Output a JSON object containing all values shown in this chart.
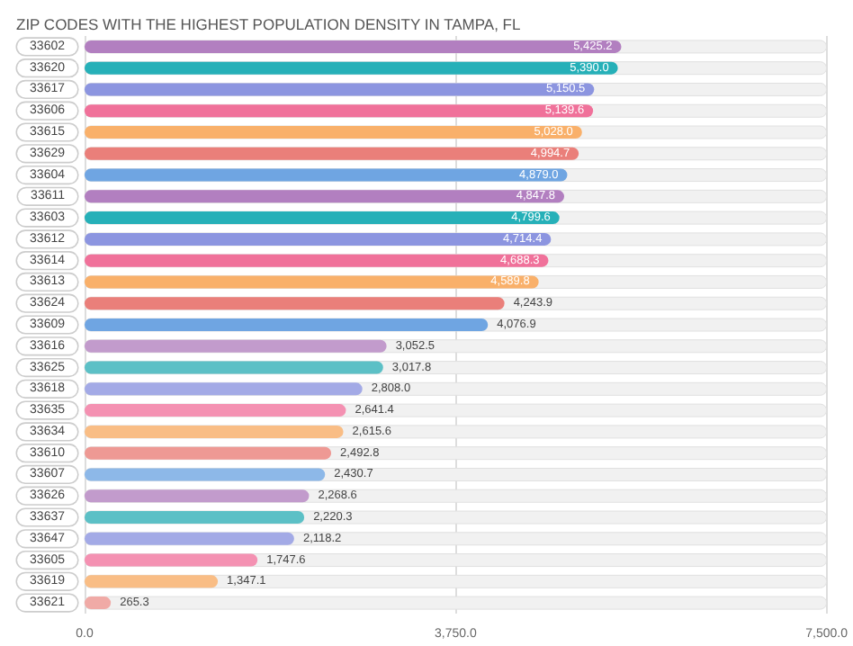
{
  "chart_data": {
    "type": "bar",
    "orientation": "horizontal",
    "title": "ZIP CODES WITH THE HIGHEST POPULATION DENSITY IN TAMPA, FL",
    "categories": [
      "33602",
      "33620",
      "33617",
      "33606",
      "33615",
      "33629",
      "33604",
      "33611",
      "33603",
      "33612",
      "33614",
      "33613",
      "33624",
      "33609",
      "33616",
      "33625",
      "33618",
      "33635",
      "33634",
      "33610",
      "33607",
      "33626",
      "33637",
      "33647",
      "33605",
      "33619",
      "33621"
    ],
    "values": [
      5425.2,
      5390.0,
      5150.5,
      5139.6,
      5028.0,
      4994.7,
      4879.0,
      4847.8,
      4799.6,
      4714.4,
      4688.3,
      4589.8,
      4243.9,
      4076.9,
      3052.5,
      3017.8,
      2808.0,
      2641.4,
      2615.6,
      2492.8,
      2430.7,
      2268.6,
      2220.3,
      2118.2,
      1747.6,
      1347.1,
      265.3
    ],
    "value_labels": [
      "5,425.2",
      "5,390.0",
      "5,150.5",
      "5,139.6",
      "5,028.0",
      "4,994.7",
      "4,879.0",
      "4,847.8",
      "4,799.6",
      "4,714.4",
      "4,688.3",
      "4,589.8",
      "4,243.9",
      "4,076.9",
      "3,052.5",
      "3,017.8",
      "2,808.0",
      "2,641.4",
      "2,615.6",
      "2,492.8",
      "2,430.7",
      "2,268.6",
      "2,220.3",
      "2,118.2",
      "1,747.6",
      "1,347.1",
      "265.3"
    ],
    "colors": [
      "#b27fc0",
      "#26b0b8",
      "#8c95e0",
      "#f0719a",
      "#f9b06a",
      "#ea7f7a",
      "#6fa5e2",
      "#b27fc0",
      "#26b0b8",
      "#8c95e0",
      "#f0719a",
      "#f9b06a",
      "#ea7f7a",
      "#6fa5e2",
      "#c29bcc",
      "#5cc0c6",
      "#a3aae6",
      "#f491b2",
      "#f9bd85",
      "#ee9994",
      "#8db8e8",
      "#c29bcc",
      "#5cc0c6",
      "#a3aae6",
      "#f491b2",
      "#f9bd85",
      "#f0aaa6"
    ],
    "xlim": [
      0,
      7500
    ],
    "xticks": [
      {
        "value": 0,
        "label": "0.0"
      },
      {
        "value": 3750,
        "label": "3,750.0"
      },
      {
        "value": 7500,
        "label": "7,500.0"
      }
    ],
    "grid": "x"
  }
}
